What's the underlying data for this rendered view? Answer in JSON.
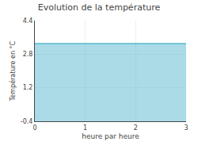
{
  "chart_data": {
    "type": "area",
    "title": "Evolution de la température",
    "xlabel": "heure par heure",
    "ylabel": "Température en °C",
    "x": [
      0,
      3
    ],
    "values": [
      3.3,
      3.3
    ],
    "color": "#55b8d0",
    "xlim": [
      0,
      3
    ],
    "ylim": [
      -0.4,
      4.4
    ],
    "xticks": [
      0,
      1,
      2,
      3
    ],
    "yticks": [
      -0.4,
      1.2,
      2.8,
      4.4
    ],
    "grid": true
  }
}
